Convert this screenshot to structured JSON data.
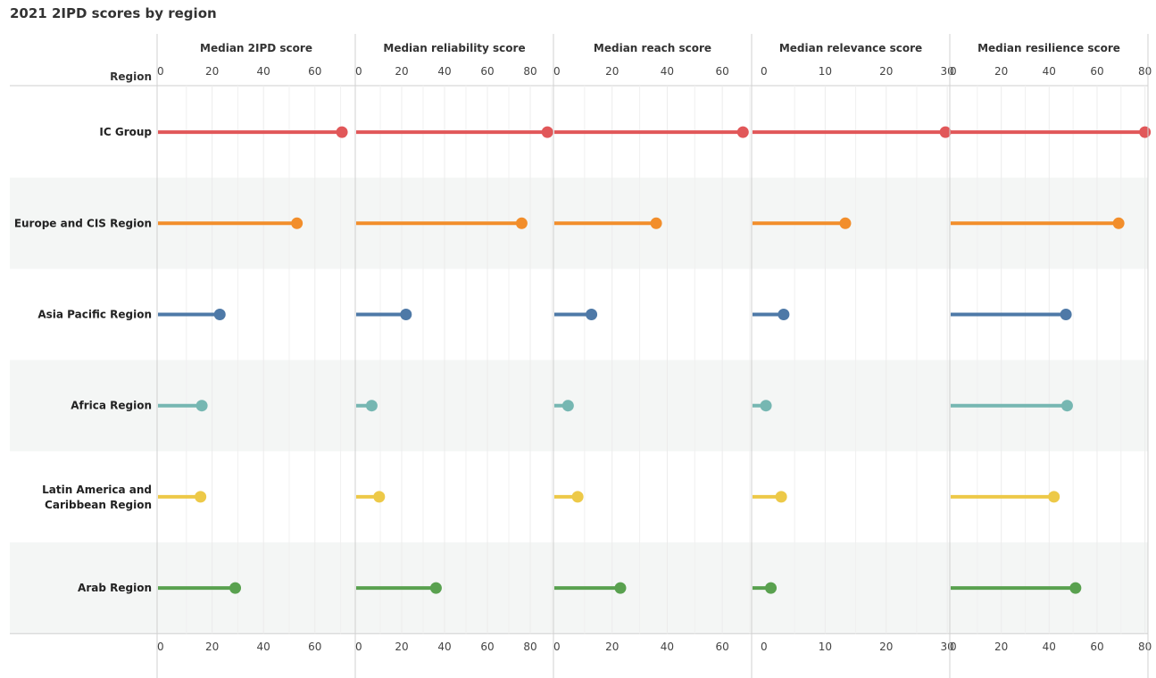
{
  "title": "2021 2IPD scores by region",
  "row_header": "Region",
  "chart_data": {
    "type": "lollipop",
    "title": "2021 2IPD scores by region",
    "grid": true,
    "regions": [
      {
        "label_lines": [
          "IC Group"
        ],
        "color": "#e15759"
      },
      {
        "label_lines": [
          "Europe and CIS Region"
        ],
        "color": "#f28e2b"
      },
      {
        "label_lines": [
          "Asia Pacific Region"
        ],
        "color": "#4e79a7"
      },
      {
        "label_lines": [
          "Africa Region"
        ],
        "color": "#76b7b2"
      },
      {
        "label_lines": [
          "Latin America and",
          "Caribbean Region"
        ],
        "color": "#edc948"
      },
      {
        "label_lines": [
          "Arab Region"
        ],
        "color": "#59a14f"
      }
    ],
    "panels": [
      {
        "title": "Median 2IPD score",
        "xlim": [
          0,
          75
        ],
        "ticks": [
          0,
          20,
          40,
          60
        ],
        "values": [
          70.5,
          53,
          23,
          16,
          15.5,
          29
        ]
      },
      {
        "title": "Median reliability score",
        "xlim": [
          0,
          90
        ],
        "ticks": [
          0,
          20,
          40,
          60,
          80
        ],
        "values": [
          88,
          76,
          22,
          6,
          9.5,
          36
        ]
      },
      {
        "title": "Median reach score",
        "xlim": [
          0,
          70
        ],
        "ticks": [
          0,
          20,
          40,
          60
        ],
        "values": [
          67.5,
          36,
          12.5,
          4,
          7.5,
          23
        ]
      },
      {
        "title": "Median relevance score",
        "xlim": [
          0,
          31
        ],
        "ticks": [
          0,
          10,
          20,
          30
        ],
        "values": [
          29.7,
          13.3,
          3.2,
          0.3,
          2.8,
          1.1
        ]
      },
      {
        "title": "Median resilience score",
        "xlim": [
          0,
          82
        ],
        "ticks": [
          0,
          20,
          40,
          60,
          80
        ],
        "values": [
          80,
          69,
          47,
          47.5,
          42,
          51
        ]
      }
    ]
  }
}
